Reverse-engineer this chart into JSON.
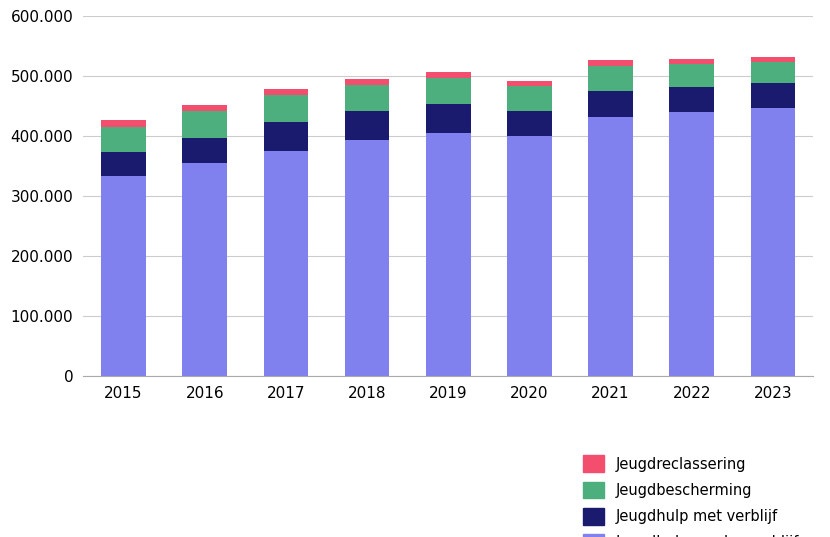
{
  "years": [
    2015,
    2016,
    2017,
    2018,
    2019,
    2020,
    2021,
    2022,
    2023
  ],
  "jeugdhulp_zonder_verblijf": [
    332645,
    355000,
    375000,
    393000,
    405000,
    400000,
    432000,
    440000,
    446665
  ],
  "jeugdhulp_met_verblijf": [
    40505,
    42000,
    48000,
    48000,
    48000,
    42000,
    43000,
    42000,
    41605
  ],
  "jeugdbescherming": [
    41950,
    44000,
    45000,
    44000,
    44000,
    41000,
    42000,
    38000,
    35910
  ],
  "jeugdreclassering": [
    11150,
    11000,
    10500,
    10500,
    10000,
    9000,
    9000,
    8500,
    7640
  ],
  "color_zonder_verblijf": "#8080ee",
  "color_met_verblijf": "#1a1a6e",
  "color_bescherming": "#4caf7d",
  "color_reclassering": "#f44e6f",
  "ylim": [
    0,
    600000
  ],
  "yticks": [
    0,
    100000,
    200000,
    300000,
    400000,
    500000,
    600000
  ],
  "legend_labels": [
    "Jeugdreclassering",
    "Jeugdbescherming",
    "Jeugdhulp met verblijf",
    "Jeugdhulp zonder verblijf"
  ],
  "background_color": "#ffffff",
  "grid_color": "#cccccc"
}
